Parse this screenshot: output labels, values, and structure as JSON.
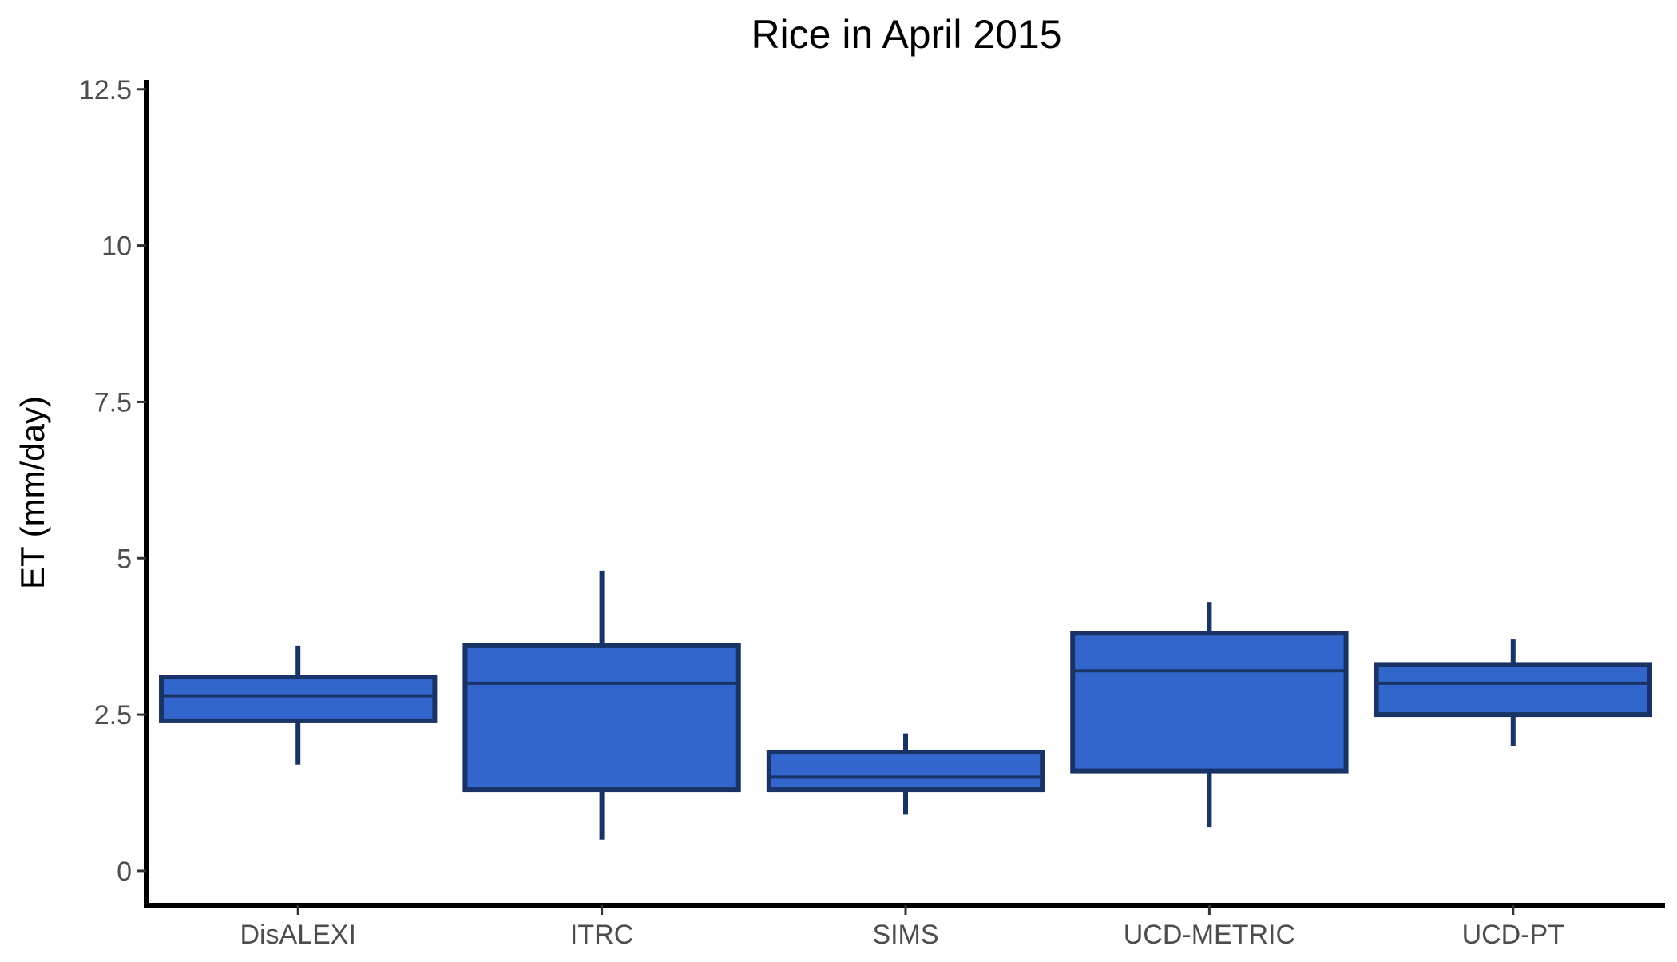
{
  "chart_data": {
    "type": "boxplot",
    "title": "Rice in April 2015",
    "xlabel": "",
    "ylabel": "ET (mm/day)",
    "ylim": [
      -0.55,
      12.65
    ],
    "yticks": [
      0,
      2.5,
      5,
      7.5,
      10,
      12.5
    ],
    "ytick_labels": [
      "0",
      "2.5",
      "5",
      "7.5",
      "10",
      "12.5"
    ],
    "grid": false,
    "legend": "none",
    "colors": {
      "box_fill": "#3366cc",
      "box_stroke": "#1a3366",
      "axis": "#000000",
      "tick_text": "#4d4d4d"
    },
    "categories": [
      "DisALEXI",
      "ITRC",
      "SIMS",
      "UCD-METRIC",
      "UCD-PT"
    ],
    "boxes": [
      {
        "category": "DisALEXI",
        "min": 1.7,
        "q1": 2.4,
        "median": 2.8,
        "q3": 3.1,
        "max": 3.6
      },
      {
        "category": "ITRC",
        "min": 0.5,
        "q1": 1.3,
        "median": 3.0,
        "q3": 3.6,
        "max": 4.8
      },
      {
        "category": "SIMS",
        "min": 0.9,
        "q1": 1.3,
        "median": 1.5,
        "q3": 1.9,
        "max": 2.2
      },
      {
        "category": "UCD-METRIC",
        "min": 0.7,
        "q1": 1.6,
        "median": 3.2,
        "q3": 3.8,
        "max": 4.3
      },
      {
        "category": "UCD-PT",
        "min": 2.0,
        "q1": 2.5,
        "median": 3.0,
        "q3": 3.3,
        "max": 3.7
      }
    ]
  }
}
